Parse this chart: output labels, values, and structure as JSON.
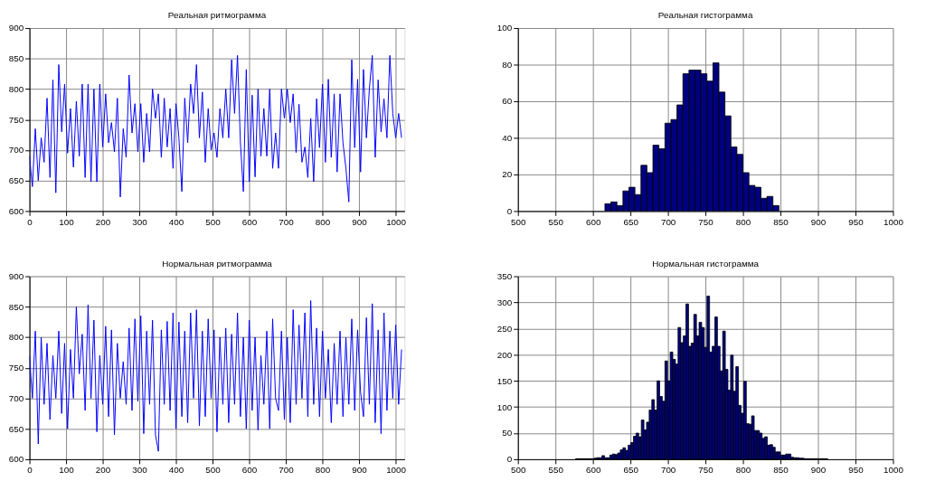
{
  "chart_data": [
    {
      "type": "line",
      "title": "Реальная ритмограмма",
      "xlim": [
        0,
        1024
      ],
      "xticks": [
        0,
        100,
        200,
        300,
        400,
        500,
        600,
        700,
        800,
        900,
        1000
      ],
      "ylim": [
        600,
        900
      ],
      "yticks": [
        600,
        650,
        700,
        750,
        800,
        850,
        900
      ],
      "grid": true,
      "x": [
        0,
        8,
        16,
        24,
        32,
        40,
        48,
        56,
        64,
        72,
        80,
        88,
        96,
        104,
        112,
        120,
        128,
        136,
        144,
        152,
        160,
        168,
        176,
        184,
        192,
        200,
        208,
        216,
        224,
        232,
        240,
        248,
        256,
        264,
        272,
        280,
        288,
        296,
        304,
        312,
        320,
        328,
        336,
        344,
        352,
        360,
        368,
        376,
        384,
        392,
        400,
        408,
        416,
        424,
        432,
        440,
        448,
        456,
        464,
        472,
        480,
        488,
        496,
        504,
        512,
        520,
        528,
        536,
        544,
        552,
        560,
        568,
        576,
        584,
        592,
        600,
        608,
        616,
        624,
        632,
        640,
        648,
        656,
        664,
        672,
        680,
        688,
        696,
        704,
        712,
        720,
        728,
        736,
        744,
        752,
        760,
        768,
        776,
        784,
        792,
        800,
        808,
        816,
        824,
        832,
        840,
        848,
        856,
        864,
        872,
        880,
        888,
        896,
        904,
        912,
        920,
        928,
        936,
        944,
        952,
        960,
        968,
        976,
        984,
        992,
        1000,
        1008,
        1016
      ],
      "series": [
        {
          "color": "#0000ff",
          "values": [
            690,
            640,
            735,
            650,
            720,
            680,
            785,
            655,
            815,
            630,
            840,
            730,
            808,
            695,
            768,
            672,
            780,
            690,
            808,
            655,
            808,
            648,
            800,
            648,
            808,
            705,
            792,
            712,
            745,
            697,
            785,
            623,
            735,
            688,
            823,
            728,
            776,
            697,
            776,
            680,
            760,
            697,
            800,
            752,
            792,
            688,
            785,
            705,
            768,
            670,
            776,
            720,
            632,
            785,
            712,
            808,
            760,
            840,
            720,
            795,
            680,
            768,
            700,
            728,
            688,
            768,
            720,
            800,
            720,
            848,
            760,
            855,
            712,
            632,
            832,
            648,
            790,
            656,
            800,
            690,
            768,
            690,
            800,
            670,
            728,
            670,
            800,
            752,
            800,
            745,
            792,
            696,
            775,
            680,
            705,
            655,
            752,
            648,
            784,
            704,
            808,
            680,
            816,
            688,
            792,
            664,
            792,
            712,
            670,
            615,
            848,
            704,
            816,
            664,
            832,
            720,
            800,
            855,
            688,
            815,
            730,
            784,
            720,
            855,
            760,
            720,
            760,
            720
          ]
        }
      ]
    },
    {
      "type": "histogram",
      "title": "Реальная гистограмма",
      "xlim": [
        500,
        1000
      ],
      "xticks": [
        500,
        550,
        600,
        650,
        700,
        750,
        800,
        850,
        900,
        950,
        1000
      ],
      "ylim": [
        0,
        100
      ],
      "yticks": [
        0,
        20,
        40,
        60,
        80,
        100
      ],
      "grid": true,
      "color": "#00007f",
      "bins": [
        616,
        624,
        632,
        640,
        648,
        656,
        664,
        672,
        680,
        688,
        696,
        704,
        712,
        720,
        728,
        736,
        744,
        752,
        760,
        768,
        776,
        784,
        792,
        800,
        808,
        816,
        824,
        832,
        840,
        848
      ],
      "values": [
        4,
        5,
        3,
        11,
        13,
        9,
        25,
        21,
        36,
        34,
        48,
        50,
        58,
        75,
        77,
        77,
        75,
        71,
        81,
        65,
        52,
        35,
        31,
        21,
        14,
        13,
        7,
        8,
        3
      ]
    },
    {
      "type": "line",
      "title": "Нормальная ритмограмма",
      "xlim": [
        0,
        1024
      ],
      "xticks": [
        0,
        100,
        200,
        300,
        400,
        500,
        600,
        700,
        800,
        900,
        1000
      ],
      "ylim": [
        600,
        900
      ],
      "yticks": [
        600,
        650,
        700,
        750,
        800,
        850,
        900
      ],
      "grid": true,
      "x": [
        0,
        8,
        16,
        24,
        32,
        40,
        48,
        56,
        64,
        72,
        80,
        88,
        96,
        104,
        112,
        120,
        128,
        136,
        144,
        152,
        160,
        168,
        176,
        184,
        192,
        200,
        208,
        216,
        224,
        232,
        240,
        248,
        256,
        264,
        272,
        280,
        288,
        296,
        304,
        312,
        320,
        328,
        336,
        344,
        352,
        360,
        368,
        376,
        384,
        392,
        400,
        408,
        416,
        424,
        432,
        440,
        448,
        456,
        464,
        472,
        480,
        488,
        496,
        504,
        512,
        520,
        528,
        536,
        544,
        552,
        560,
        568,
        576,
        584,
        592,
        600,
        608,
        616,
        624,
        632,
        640,
        648,
        656,
        664,
        672,
        680,
        688,
        696,
        704,
        712,
        720,
        728,
        736,
        744,
        752,
        760,
        768,
        776,
        784,
        792,
        800,
        808,
        816,
        824,
        832,
        840,
        848,
        856,
        864,
        872,
        880,
        888,
        896,
        904,
        912,
        920,
        928,
        936,
        944,
        952,
        960,
        968,
        976,
        984,
        992,
        1000,
        1008,
        1016
      ],
      "series": [
        {
          "color": "#0000ff",
          "values": [
            770,
            700,
            810,
            625,
            800,
            690,
            790,
            665,
            770,
            700,
            810,
            675,
            790,
            650,
            780,
            700,
            850,
            740,
            805,
            680,
            853,
            700,
            828,
            645,
            770,
            690,
            818,
            670,
            812,
            640,
            790,
            700,
            760,
            690,
            815,
            680,
            830,
            695,
            835,
            642,
            810,
            690,
            828,
            640,
            613,
            812,
            690,
            826,
            680,
            840,
            650,
            825,
            670,
            810,
            660,
            840,
            700,
            845,
            655,
            810,
            670,
            830,
            700,
            812,
            645,
            800,
            690,
            815,
            660,
            805,
            690,
            840,
            670,
            800,
            650,
            828,
            680,
            800,
            648,
            770,
            690,
            810,
            650,
            830,
            700,
            680,
            810,
            665,
            800,
            660,
            845,
            690,
            820,
            700,
            840,
            670,
            860,
            690,
            815,
            670,
            810,
            700,
            780,
            660,
            790,
            690,
            810,
            670,
            800,
            690,
            830,
            680,
            812,
            710,
            670,
            832,
            690,
            855,
            660,
            812,
            642,
            840,
            680,
            810,
            700,
            820,
            690,
            780
          ]
        }
      ]
    },
    {
      "type": "histogram",
      "title": "Нормальная гистограмма",
      "xlim": [
        500,
        1000
      ],
      "xticks": [
        500,
        550,
        600,
        650,
        700,
        750,
        800,
        850,
        900,
        950,
        1000
      ],
      "ylim": [
        0,
        350
      ],
      "yticks": [
        0,
        50,
        100,
        150,
        200,
        250,
        300,
        350
      ],
      "grid": true,
      "color": "#00007f",
      "bins": [
        577,
        580.5,
        584,
        587.5,
        591,
        594.5,
        598,
        601.5,
        605,
        608.5,
        612,
        615.5,
        619,
        622.5,
        626,
        629.5,
        633,
        636.5,
        640,
        643.5,
        647,
        650.5,
        654,
        657.5,
        661,
        664.5,
        668,
        671.5,
        675,
        678.5,
        682,
        685.5,
        689,
        692.5,
        696,
        699.5,
        703,
        706.5,
        710,
        713.5,
        717,
        720.5,
        724,
        727.5,
        731,
        734.5,
        738,
        741.5,
        745,
        748.5,
        752,
        755.5,
        759,
        762.5,
        766,
        769.5,
        773,
        776.5,
        780,
        783.5,
        787,
        790.5,
        794,
        797.5,
        801,
        804.5,
        808,
        811.5,
        815,
        818.5,
        822,
        825.5,
        829,
        832.5,
        836,
        839.5,
        843,
        846.5,
        850,
        853.5,
        857,
        860.5,
        864,
        867.5,
        871,
        874.5,
        878,
        881.5,
        885,
        888.5,
        892,
        895.5,
        899,
        902.5,
        906,
        909.5,
        913
      ],
      "values": [
        1,
        1,
        1,
        1,
        1,
        1,
        1,
        2,
        3,
        3,
        7,
        3,
        3,
        8,
        10,
        9,
        12,
        18,
        22,
        17,
        27,
        32,
        44,
        50,
        43,
        75,
        56,
        71,
        94,
        114,
        94,
        150,
        120,
        111,
        188,
        150,
        205,
        191,
        182,
        252,
        223,
        236,
        297,
        216,
        222,
        277,
        236,
        262,
        252,
        214,
        312,
        205,
        216,
        272,
        216,
        169,
        245,
        172,
        132,
        199,
        130,
        177,
        103,
        88,
        149,
        68,
        67,
        83,
        55,
        55,
        50,
        40,
        43,
        27,
        28,
        23,
        14,
        14,
        8,
        8,
        10,
        10,
        4,
        3,
        3,
        2,
        2,
        1,
        1,
        1,
        1,
        1,
        1,
        1,
        1,
        1
      ]
    }
  ]
}
